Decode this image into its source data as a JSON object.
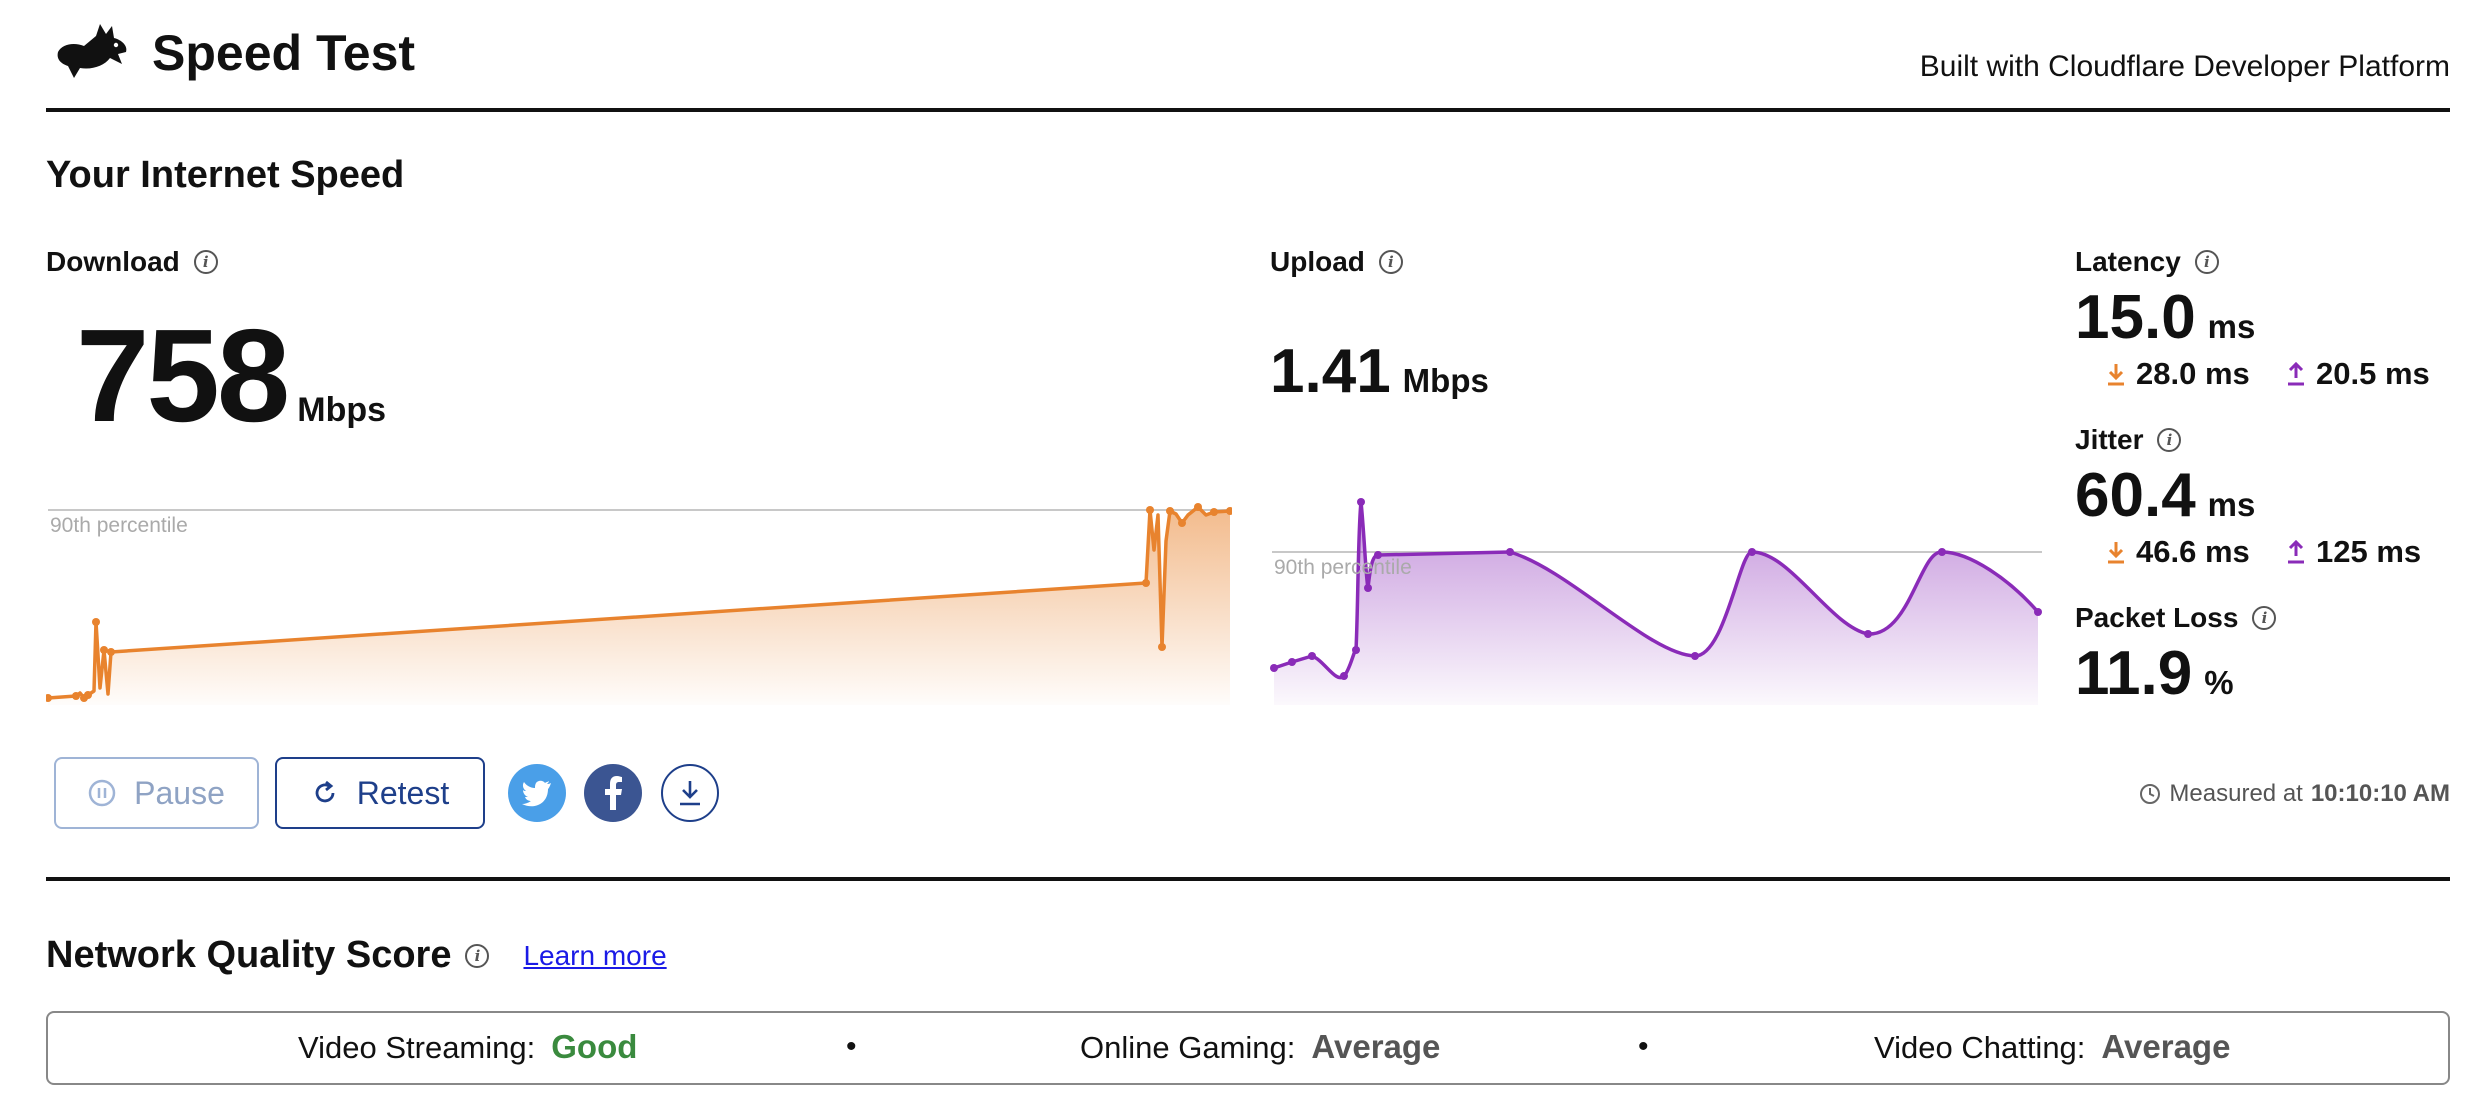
{
  "header": {
    "title": "Speed Test",
    "built_with": "Built with Cloudflare Developer Platform"
  },
  "section_title": "Your Internet Speed",
  "download": {
    "label": "Download",
    "value": "758",
    "unit": "Mbps",
    "percentile_label": "90th percentile",
    "color": "#e8832e"
  },
  "upload": {
    "label": "Upload",
    "value": "1.41",
    "unit": "Mbps",
    "percentile_label": "90th percentile",
    "color": "#8a2bb8"
  },
  "latency": {
    "label": "Latency",
    "value": "15.0",
    "unit": "ms",
    "down": "28.0 ms",
    "up": "20.5 ms"
  },
  "jitter": {
    "label": "Jitter",
    "value": "60.4",
    "unit": "ms",
    "down": "46.6 ms",
    "up": "125 ms"
  },
  "packet_loss": {
    "label": "Packet Loss",
    "value": "11.9",
    "unit": "%"
  },
  "controls": {
    "pause_label": "Pause",
    "retest_label": "Retest"
  },
  "measured": {
    "prefix": "Measured at",
    "time": "10:10:10 AM"
  },
  "network_quality": {
    "title": "Network Quality Score",
    "learn_more": "Learn more",
    "items": [
      {
        "label": "Video Streaming:",
        "value": "Good",
        "color": "#3a8a3e"
      },
      {
        "label": "Online Gaming:",
        "value": "Average",
        "color": "#555555"
      },
      {
        "label": "Video Chatting:",
        "value": "Average",
        "color": "#555555"
      }
    ]
  }
}
